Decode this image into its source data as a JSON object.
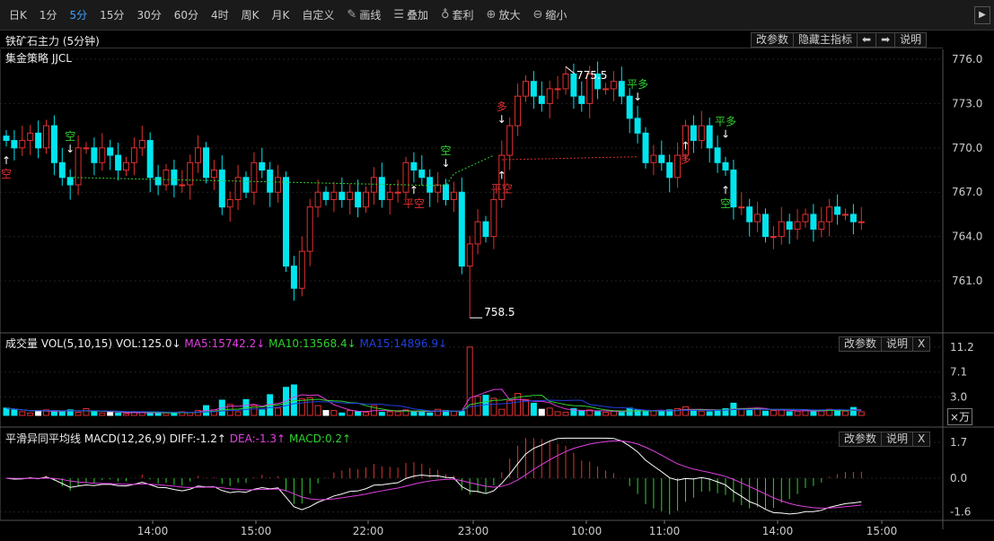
{
  "toolbar": {
    "items": [
      "日K",
      "1分",
      "5分",
      "15分",
      "30分",
      "60分",
      "4时",
      "周K",
      "月K",
      "自定义"
    ],
    "active": "5分",
    "tools": [
      {
        "icon": "pencil-icon",
        "label": "画线"
      },
      {
        "icon": "stack-icon",
        "label": "叠加"
      },
      {
        "icon": "money-bag-icon",
        "label": "套利"
      },
      {
        "icon": "zoom-in-icon",
        "label": "放大"
      },
      {
        "icon": "zoom-out-icon",
        "label": "缩小"
      }
    ],
    "scroll": "▶"
  },
  "main": {
    "title": "铁矿石主力 (5分钟)",
    "strategy": "集金策略 JJCL",
    "buttons": [
      "改参数",
      "隐藏主指标",
      "⬅",
      "➡",
      "说明"
    ],
    "price_ticks": [
      "776.0",
      "773.0",
      "770.0",
      "767.0",
      "764.0",
      "761.0"
    ],
    "high_label": "775.5",
    "low_label": "758.5",
    "high_index": 70,
    "low_index": 58,
    "signals": [
      {
        "i": 0,
        "t": "空",
        "c": "#e03030",
        "pos": "below"
      },
      {
        "i": 8,
        "t": "空",
        "c": "#30d030",
        "pos": "above"
      },
      {
        "i": 51,
        "t": "平空",
        "c": "#e03030",
        "pos": "below"
      },
      {
        "i": 55,
        "t": "空",
        "c": "#30d030",
        "pos": "above"
      },
      {
        "i": 62,
        "t": "平空",
        "c": "#e03030",
        "pos": "below"
      },
      {
        "i": 62,
        "t": "多",
        "c": "#e03030",
        "pos": "above"
      },
      {
        "i": 79,
        "t": "平多",
        "c": "#30d030",
        "pos": "above"
      },
      {
        "i": 85,
        "t": "多",
        "c": "#e03030",
        "pos": "below"
      },
      {
        "i": 90,
        "t": "平多",
        "c": "#30d030",
        "pos": "above"
      },
      {
        "i": 90,
        "t": "空",
        "c": "#30d030",
        "pos": "below"
      }
    ]
  },
  "volume": {
    "title": "成交量 VOL(5,10,15)",
    "vol": "VOL:125.0↓",
    "ma5": "MA5:15742.2↓",
    "ma10": "MA10:13568.4↓",
    "ma15": "MA15:14896.9↓",
    "ticks": [
      "11.2",
      "7.1",
      "3.0"
    ],
    "unit": "×万",
    "buttons": [
      "改参数",
      "说明",
      "X"
    ]
  },
  "macd": {
    "title": "平滑异同平均线 MACD(12,26,9)",
    "diff": "DIFF:-1.2↑",
    "dea": "DEA:-1.3↑",
    "macd": "MACD:0.2↑",
    "ticks": [
      "1.7",
      "0.0",
      "-1.6"
    ],
    "buttons": [
      "改参数",
      "说明",
      "X"
    ]
  },
  "time_axis": [
    "14:00",
    "15:00",
    "22:00",
    "23:00",
    "10:00",
    "11:00",
    "14:00",
    "15:00"
  ],
  "colors": {
    "up": "#e03030",
    "down": "#00e5ee",
    "ma5": "#e040e0",
    "ma10": "#30d030",
    "ma15": "#2040e0"
  },
  "chart_data": {
    "type": "candlestick",
    "close": [
      770.5,
      770,
      770.5,
      771,
      770,
      771.5,
      769,
      768,
      767.5,
      770,
      770,
      769,
      770,
      769.5,
      768.5,
      769,
      770,
      770.5,
      768,
      767.5,
      768.5,
      767.5,
      767.5,
      769,
      770,
      768,
      768.5,
      766,
      766.5,
      768,
      767,
      769,
      768.5,
      767,
      768,
      762,
      760.5,
      763,
      766,
      767,
      766.5,
      767,
      766.5,
      767,
      766,
      767,
      768,
      766.5,
      767,
      767,
      769,
      768.5,
      768,
      767,
      767.5,
      766.5,
      767,
      762,
      763.5,
      765,
      764,
      766.5,
      769.5,
      771.5,
      773.5,
      774.5,
      773.5,
      773,
      774,
      774,
      775,
      773.5,
      773,
      775,
      774,
      774,
      774.5,
      773.5,
      772,
      771,
      769,
      769.5,
      769,
      768,
      769.5,
      771.5,
      770.5,
      771.5,
      770,
      769,
      768.5,
      766,
      766,
      765,
      765.5,
      764,
      764,
      765,
      764.5,
      765,
      765.5,
      764.5,
      765,
      766,
      765.5,
      765.5,
      765,
      765
    ],
    "volume": [
      1.2,
      0.9,
      0.6,
      0.4,
      0.8,
      0.9,
      0.7,
      0.6,
      0.9,
      0.5,
      1.1,
      0.6,
      0.4,
      0.5,
      0.4,
      0.3,
      0.6,
      0.5,
      0.3,
      0.5,
      0.4,
      0.5,
      0.6,
      0.5,
      0.8,
      1.6,
      0.9,
      2.5,
      1.8,
      0.6,
      2.6,
      1.6,
      0.9,
      3.4,
      1.2,
      4.6,
      5.0,
      2.7,
      2.9,
      1.6,
      0.8,
      0.8,
      0.4,
      0.8,
      0.6,
      0.5,
      1.6,
      0.5,
      0.6,
      0.6,
      0.9,
      0.6,
      0.6,
      0.4,
      1.0,
      0.8,
      0.7,
      0.7,
      11.2,
      3.1,
      3.3,
      2.8,
      1.0,
      2.4,
      3.6,
      2.6,
      2.0,
      1.0,
      1.2,
      0.6,
      0.5,
      1.1,
      0.7,
      0.9,
      0.6,
      0.5,
      0.7,
      0.5,
      1.2,
      0.9,
      0.6,
      0.8,
      0.7,
      0.9,
      1.1,
      1.4,
      0.9,
      0.7,
      0.6,
      0.9,
      1.1,
      2.0,
      1.0,
      0.8,
      1.2,
      0.7,
      0.8,
      0.9,
      0.6,
      0.7,
      0.9,
      0.6,
      0.8,
      1.0,
      0.9,
      0.7,
      1.3,
      0.6
    ]
  }
}
